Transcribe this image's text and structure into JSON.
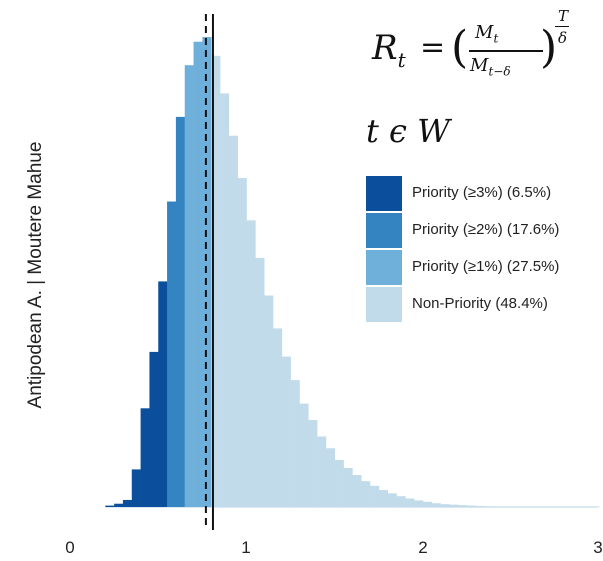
{
  "chart_data": {
    "type": "bar",
    "xlabel": "",
    "ylabel": "Antipodean A. | Moutere Mahue",
    "xlim": [
      0,
      3
    ],
    "x_ticks": [
      "0",
      "1",
      "2",
      "3"
    ],
    "bin_width": 0.05,
    "reference_lines": [
      {
        "x": 0.77,
        "style": "dashed"
      },
      {
        "x": 0.81,
        "style": "solid"
      }
    ],
    "series": [
      {
        "name": "Priority (≥3%) (6.5%)",
        "color": "#0b4f9c",
        "bins": [
          [
            0.2,
            0.003
          ],
          [
            0.25,
            0.007
          ],
          [
            0.3,
            0.015
          ],
          [
            0.35,
            0.08
          ],
          [
            0.4,
            0.21
          ],
          [
            0.45,
            0.33
          ],
          [
            0.5,
            0.48
          ]
        ]
      },
      {
        "name": "Priority (≥2%) (17.6%)",
        "color": "#3584c2",
        "bins": [
          [
            0.55,
            0.65
          ],
          [
            0.6,
            0.83
          ]
        ]
      },
      {
        "name": "Priority (≥1%) (27.5%)",
        "color": "#6fb0db",
        "bins": [
          [
            0.65,
            0.94
          ],
          [
            0.7,
            0.99
          ],
          [
            0.75,
            1.0
          ]
        ]
      },
      {
        "name": "Non-Priority (48.4%)",
        "color": "#c2dbea",
        "bins": [
          [
            0.8,
            0.96
          ],
          [
            0.85,
            0.88
          ],
          [
            0.9,
            0.79
          ],
          [
            0.95,
            0.7
          ],
          [
            1.0,
            0.61
          ],
          [
            1.05,
            0.53
          ],
          [
            1.1,
            0.45
          ],
          [
            1.15,
            0.38
          ],
          [
            1.2,
            0.32
          ],
          [
            1.25,
            0.27
          ],
          [
            1.3,
            0.22
          ],
          [
            1.35,
            0.185
          ],
          [
            1.4,
            0.15
          ],
          [
            1.45,
            0.125
          ],
          [
            1.5,
            0.1
          ],
          [
            1.55,
            0.083
          ],
          [
            1.6,
            0.068
          ],
          [
            1.65,
            0.055
          ],
          [
            1.7,
            0.045
          ],
          [
            1.75,
            0.036
          ],
          [
            1.8,
            0.029
          ],
          [
            1.85,
            0.023
          ],
          [
            1.9,
            0.018
          ],
          [
            1.95,
            0.014
          ],
          [
            2.0,
            0.011
          ],
          [
            2.05,
            0.008
          ],
          [
            2.1,
            0.006
          ],
          [
            2.15,
            0.005
          ],
          [
            2.2,
            0.004
          ],
          [
            2.25,
            0.003
          ],
          [
            2.3,
            0.002
          ],
          [
            2.35,
            0.0015
          ],
          [
            2.4,
            0.001
          ],
          [
            2.45,
            0.0008
          ],
          [
            2.5,
            0.0006
          ],
          [
            2.55,
            0.0005
          ],
          [
            2.6,
            0.0004
          ],
          [
            2.65,
            0.0003
          ],
          [
            2.7,
            0.0002
          ],
          [
            2.75,
            0.0002
          ],
          [
            2.8,
            0.0001
          ],
          [
            2.85,
            0.0001
          ],
          [
            2.9,
            0.0001
          ],
          [
            2.95,
            0.0001
          ]
        ]
      }
    ],
    "annotations": [
      "R_t = (M_t / M_{t−δ})^{T/δ}",
      "t ϵ W"
    ]
  }
}
